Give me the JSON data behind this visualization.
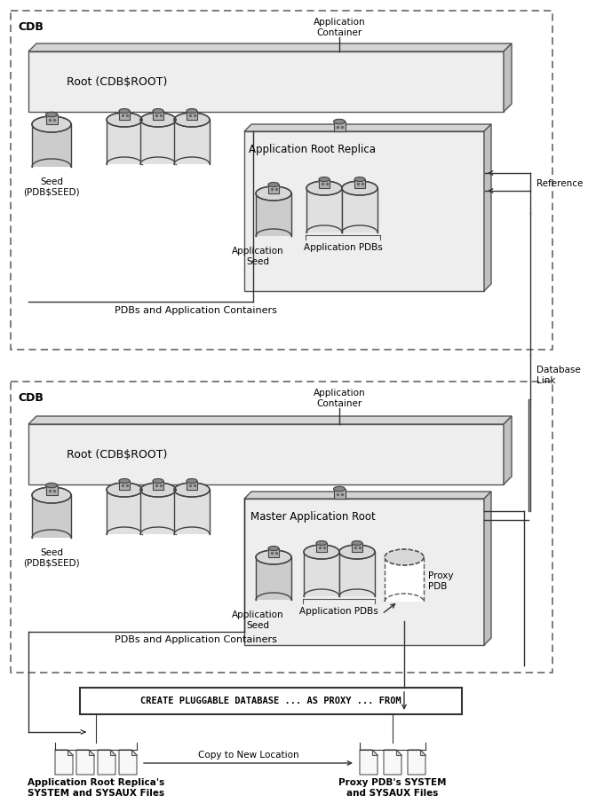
{
  "fig_width": 6.8,
  "fig_height": 9.14,
  "bg_color": "#ffffff",
  "cdb_label": "CDB",
  "root_label": "Root (CDB$ROOT)",
  "seed_label": "Seed\n(PDB$SEED)",
  "app_container_label": "Application\nContainer",
  "app_root_replica_label": "Application Root Replica",
  "master_app_root_label": "Master Application Root",
  "app_seed_label": "Application\nSeed",
  "app_pdbs_label": "Application PDBs",
  "pdbs_containers_label": "PDBs and Application Containers",
  "reference_label": "Reference",
  "db_link_label": "Database\nLink",
  "proxy_pdb_label": "Proxy\nPDB",
  "sql_label": "CREATE PLUGGABLE DATABASE ... AS PROXY ... FROM",
  "copy_label": "Copy to New Location",
  "app_root_replica_files_label": "Application Root Replica's\nSYSTEM and SYSAUX Files",
  "proxy_pdb_files_label": "Proxy PDB's SYSTEM\nand SYSAUX Files"
}
